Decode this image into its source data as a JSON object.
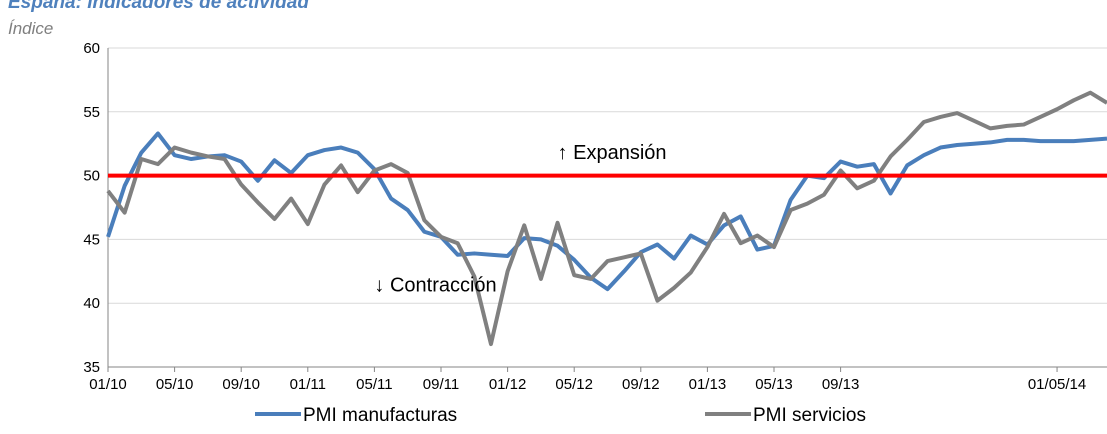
{
  "chart_data": {
    "type": "line",
    "title": "España: Indicadores de actividad",
    "subtitle": "Índice",
    "categories": [
      "01/10",
      null,
      null,
      null,
      "05/10",
      null,
      null,
      null,
      "09/10",
      null,
      null,
      null,
      "01/11",
      null,
      null,
      null,
      "05/11",
      null,
      null,
      null,
      "09/11",
      null,
      null,
      null,
      "01/12",
      null,
      null,
      null,
      "05/12",
      null,
      null,
      null,
      "09/12",
      null,
      null,
      null,
      "01/13",
      null,
      null,
      null,
      "05/13",
      null,
      null,
      null,
      "09/13",
      null,
      null,
      null,
      null,
      null,
      null,
      null,
      null,
      null,
      null,
      null,
      null,
      "01/05/14",
      null,
      null,
      null
    ],
    "series": [
      {
        "name": "PMI manufacturas",
        "color": "#4a7ebb",
        "values": [
          45.2,
          49.2,
          51.8,
          53.3,
          51.6,
          51.3,
          51.5,
          51.6,
          51.1,
          49.6,
          51.2,
          50.2,
          51.6,
          52.0,
          52.2,
          51.8,
          50.5,
          48.2,
          47.3,
          45.6,
          45.2,
          43.8,
          43.9,
          43.8,
          43.7,
          45.1,
          45.0,
          44.5,
          43.4,
          42.0,
          41.1,
          42.5,
          44.0,
          44.6,
          43.5,
          45.3,
          44.6,
          46.1,
          46.8,
          44.2,
          44.5,
          48.1,
          50.0,
          49.8,
          51.1,
          50.7,
          50.9,
          48.6,
          50.8,
          51.6,
          52.2,
          52.4,
          52.5,
          52.6,
          52.8,
          52.8,
          52.7,
          52.7,
          52.7,
          52.8,
          52.9
        ]
      },
      {
        "name": "PMI servicios",
        "color": "#808080",
        "values": [
          48.8,
          47.1,
          51.3,
          50.9,
          52.2,
          51.8,
          51.5,
          51.3,
          49.3,
          47.9,
          46.6,
          48.2,
          46.2,
          49.3,
          50.8,
          48.7,
          50.4,
          50.9,
          50.2,
          46.5,
          45.2,
          44.7,
          42.1,
          36.8,
          42.5,
          46.1,
          41.9,
          46.3,
          42.2,
          41.9,
          43.3,
          43.6,
          43.9,
          40.2,
          41.2,
          42.4,
          44.4,
          47.0,
          44.7,
          45.3,
          44.4,
          47.3,
          47.8,
          48.5,
          50.4,
          49.0,
          49.6,
          51.5,
          52.8,
          54.2,
          54.6,
          54.9,
          54.3,
          53.7,
          53.9,
          54.0,
          54.6,
          55.2,
          55.9,
          56.5,
          55.7
        ]
      }
    ],
    "reference_line": {
      "value": 50,
      "color": "#ff0000"
    },
    "annotations": [
      {
        "text": "↑ Expansión",
        "x": 27,
        "y": 51.3
      },
      {
        "text": "↓ Contracción",
        "x": 16,
        "y": 40.9
      }
    ],
    "ylim": [
      35,
      60
    ],
    "yticks": [
      35,
      40,
      45,
      50,
      55,
      60
    ],
    "grid": true
  }
}
